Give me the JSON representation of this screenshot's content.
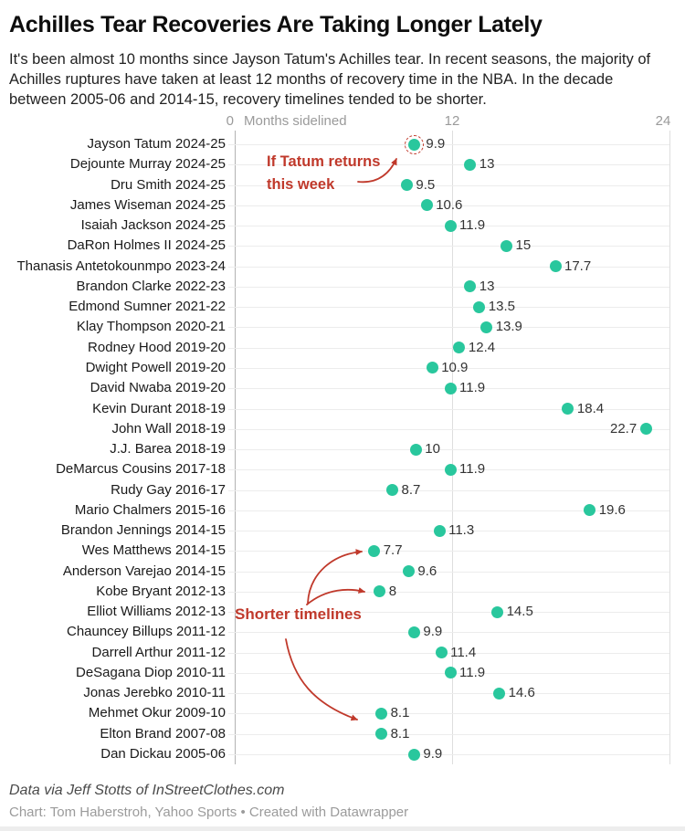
{
  "header": {
    "title": "Achilles Tear Recoveries Are Taking Longer Lately",
    "subtitle": "It's been almost 10 months since Jayson Tatum's Achilles tear. In recent seasons, the majority of Achilles ruptures have taken at least 12 months of recovery time in the NBA. In the decade between 2005-06 and 2014-15, recovery timelines tended to be shorter."
  },
  "axis": {
    "tick_0": "0",
    "title": "Months sidelined",
    "tick_12": "12",
    "tick_24": "24"
  },
  "annotations": {
    "tatum_line1": "If Tatum returns",
    "tatum_line2": "this week",
    "shorter": "Shorter timelines"
  },
  "footer": {
    "source": "Data via Jeff Stotts of InStreetClothes.com",
    "credit": "Chart: Tom Haberstroh, Yahoo Sports • Created with Datawrapper"
  },
  "colors": {
    "dot": "#29c79d",
    "annotation_red": "#c0392b",
    "axis_line": "#b3b3b3",
    "gridline": "#ececec",
    "tick_line": "#dedede"
  },
  "chart_data": {
    "type": "scatter",
    "title": "Achilles Tear Recoveries Are Taking Longer Lately",
    "xlabel": "Months sidelined",
    "xlim": [
      0,
      24
    ],
    "xticks": [
      0,
      12,
      24
    ],
    "grid": "horizontal rows + vertical ticks at 0/12/24",
    "players": [
      {
        "label": "Jayson Tatum 2024-25",
        "months": 9.9,
        "value_label": "9.9",
        "highlighted": true
      },
      {
        "label": "Dejounte Murray 2024-25",
        "months": 13,
        "value_label": "13"
      },
      {
        "label": "Dru Smith 2024-25",
        "months": 9.5,
        "value_label": "9.5"
      },
      {
        "label": "James Wiseman 2024-25",
        "months": 10.6,
        "value_label": "10.6"
      },
      {
        "label": "Isaiah Jackson 2024-25",
        "months": 11.9,
        "value_label": "11.9"
      },
      {
        "label": "DaRon Holmes II 2024-25",
        "months": 15,
        "value_label": "15"
      },
      {
        "label": "Thanasis Antetokounmpo 2023-24",
        "months": 17.7,
        "value_label": "17.7"
      },
      {
        "label": "Brandon Clarke 2022-23",
        "months": 13,
        "value_label": "13"
      },
      {
        "label": "Edmond Sumner 2021-22",
        "months": 13.5,
        "value_label": "13.5"
      },
      {
        "label": "Klay Thompson 2020-21",
        "months": 13.9,
        "value_label": "13.9"
      },
      {
        "label": "Rodney Hood 2019-20",
        "months": 12.4,
        "value_label": "12.4"
      },
      {
        "label": "Dwight Powell 2019-20",
        "months": 10.9,
        "value_label": "10.9"
      },
      {
        "label": "David Nwaba 2019-20",
        "months": 11.9,
        "value_label": "11.9"
      },
      {
        "label": "Kevin Durant 2018-19",
        "months": 18.4,
        "value_label": "18.4"
      },
      {
        "label": "John Wall 2018-19",
        "months": 22.7,
        "value_label": "22.7",
        "label_side": "left"
      },
      {
        "label": "J.J. Barea 2018-19",
        "months": 10,
        "value_label": "10"
      },
      {
        "label": "DeMarcus Cousins 2017-18",
        "months": 11.9,
        "value_label": "11.9"
      },
      {
        "label": "Rudy Gay 2016-17",
        "months": 8.7,
        "value_label": "8.7"
      },
      {
        "label": "Mario Chalmers 2015-16",
        "months": 19.6,
        "value_label": "19.6"
      },
      {
        "label": "Brandon Jennings 2014-15",
        "months": 11.3,
        "value_label": "11.3"
      },
      {
        "label": "Wes Matthews 2014-15",
        "months": 7.7,
        "value_label": "7.7"
      },
      {
        "label": "Anderson Varejao 2014-15",
        "months": 9.6,
        "value_label": "9.6"
      },
      {
        "label": "Kobe Bryant 2012-13",
        "months": 8,
        "value_label": "8"
      },
      {
        "label": "Elliot Williams 2012-13",
        "months": 14.5,
        "value_label": "14.5"
      },
      {
        "label": "Chauncey Billups 2011-12",
        "months": 9.9,
        "value_label": "9.9"
      },
      {
        "label": "Darrell Arthur 2011-12",
        "months": 11.4,
        "value_label": "11.4"
      },
      {
        "label": "DeSagana Diop 2010-11",
        "months": 11.9,
        "value_label": "11.9"
      },
      {
        "label": "Jonas Jerebko 2010-11",
        "months": 14.6,
        "value_label": "14.6"
      },
      {
        "label": "Mehmet Okur 2009-10",
        "months": 8.1,
        "value_label": "8.1"
      },
      {
        "label": "Elton Brand 2007-08",
        "months": 8.1,
        "value_label": "8.1"
      },
      {
        "label": "Dan Dickau 2005-06",
        "months": 9.9,
        "value_label": "9.9"
      }
    ]
  }
}
